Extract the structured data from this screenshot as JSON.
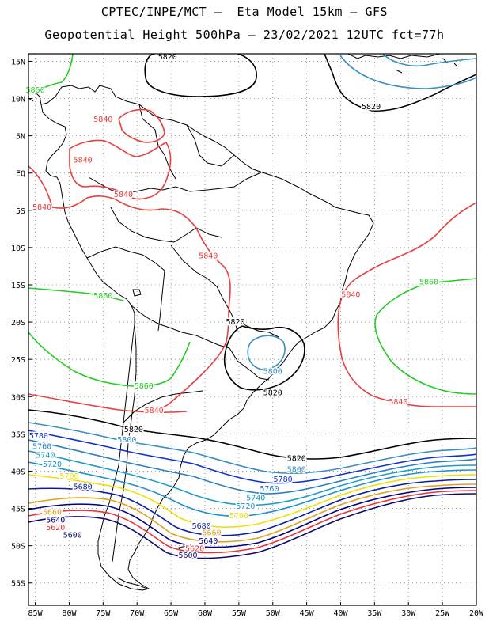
{
  "title_line1": "CPTEC/INPE/MCT –  Eta Model 15km – GFS",
  "title_line2": "Geopotential Height 500hPa – 23/02/2021 12UTC fct=77h",
  "map": {
    "lon_range": [
      -86,
      -20
    ],
    "lat_range": [
      -58,
      16
    ],
    "lon_ticks": [
      "85W",
      "80W",
      "75W",
      "70W",
      "65W",
      "60W",
      "55W",
      "50W",
      "45W",
      "40W",
      "35W",
      "30W",
      "25W",
      "20W"
    ],
    "lon_tick_values": [
      -85,
      -80,
      -75,
      -70,
      -65,
      -60,
      -55,
      -50,
      -45,
      -40,
      -35,
      -30,
      -25,
      -20
    ],
    "lat_ticks": [
      "15N",
      "10N",
      "5N",
      "EQ",
      "5S",
      "10S",
      "15S",
      "20S",
      "25S",
      "30S",
      "35S",
      "40S",
      "45S",
      "50S",
      "55S"
    ],
    "lat_tick_values": [
      15,
      10,
      5,
      0,
      -5,
      -10,
      -15,
      -20,
      -25,
      -30,
      -35,
      -40,
      -45,
      -50,
      -55
    ],
    "grid": true,
    "level_colors": {
      "5600": "#0b0b6e",
      "5620": "#e8343a",
      "5640": "#000080",
      "5660": "#e0a020",
      "5680": "#0a1fa0",
      "5700": "#f0e000",
      "5720": "#1f8fd0",
      "5740": "#1c9cc8",
      "5760": "#2a7fc0",
      "5780": "#1030d0",
      "5800": "#3a8fc0",
      "5820": "#000000",
      "5840": "#e84040",
      "5860": "#22cc22"
    },
    "contour_labels": [
      {
        "text": "5820",
        "level": "5820",
        "lon": -65.5,
        "lat": 15.7
      },
      {
        "text": "5820",
        "level": "5820",
        "lon": -35.5,
        "lat": 9.0
      },
      {
        "text": "5840",
        "level": "5840",
        "lon": -75.0,
        "lat": 7.3
      },
      {
        "text": "5840",
        "level": "5840",
        "lon": -78.0,
        "lat": 1.8
      },
      {
        "text": "5840",
        "level": "5840",
        "lon": -72.0,
        "lat": -2.8
      },
      {
        "text": "5840",
        "level": "5840",
        "lon": -84.0,
        "lat": -4.5
      },
      {
        "text": "5840",
        "level": "5840",
        "lon": -59.5,
        "lat": -11.0
      },
      {
        "text": "5840",
        "level": "5840",
        "lon": -38.5,
        "lat": -16.2
      },
      {
        "text": "5840",
        "level": "5840",
        "lon": -67.5,
        "lat": -31.8
      },
      {
        "text": "5840",
        "level": "5840",
        "lon": -31.5,
        "lat": -30.6
      },
      {
        "text": "5860",
        "level": "5860",
        "lon": -85.0,
        "lat": 11.2
      },
      {
        "text": "5860",
        "level": "5860",
        "lon": -75.0,
        "lat": -16.4
      },
      {
        "text": "5860",
        "level": "5860",
        "lon": -69.0,
        "lat": -28.5
      },
      {
        "text": "5860",
        "level": "5860",
        "lon": -27.0,
        "lat": -14.5
      },
      {
        "text": "5820",
        "level": "5820",
        "lon": -55.5,
        "lat": -19.9
      },
      {
        "text": "5800",
        "level": "5800",
        "lon": -50.0,
        "lat": -26.5
      },
      {
        "text": "5820",
        "level": "5820",
        "lon": -50.0,
        "lat": -29.4
      },
      {
        "text": "5820",
        "level": "5820",
        "lon": -70.5,
        "lat": -34.3
      },
      {
        "text": "5800",
        "level": "5800",
        "lon": -71.5,
        "lat": -35.7
      },
      {
        "text": "5820",
        "level": "5820",
        "lon": -46.5,
        "lat": -38.2
      },
      {
        "text": "5800",
        "level": "5800",
        "lon": -46.5,
        "lat": -39.7
      },
      {
        "text": "5780",
        "level": "5780",
        "lon": -48.5,
        "lat": -41.0
      },
      {
        "text": "5760",
        "level": "5760",
        "lon": -50.5,
        "lat": -42.3
      },
      {
        "text": "5740",
        "level": "5740",
        "lon": -52.5,
        "lat": -43.5
      },
      {
        "text": "5720",
        "level": "5720",
        "lon": -54.0,
        "lat": -44.6
      },
      {
        "text": "5700",
        "level": "5700",
        "lon": -55.0,
        "lat": -45.9
      },
      {
        "text": "5680",
        "level": "5680",
        "lon": -60.5,
        "lat": -47.3
      },
      {
        "text": "5660",
        "level": "5660",
        "lon": -59.0,
        "lat": -48.2
      },
      {
        "text": "5640",
        "level": "5640",
        "lon": -59.5,
        "lat": -49.3
      },
      {
        "text": "5620",
        "level": "5620",
        "lon": -61.5,
        "lat": -50.3
      },
      {
        "text": "5600",
        "level": "5600",
        "lon": -62.5,
        "lat": -51.2
      },
      {
        "text": "5780",
        "level": "5780",
        "lon": -84.5,
        "lat": -35.2
      },
      {
        "text": "5760",
        "level": "5760",
        "lon": -84.0,
        "lat": -36.6
      },
      {
        "text": "5740",
        "level": "5740",
        "lon": -83.5,
        "lat": -37.8
      },
      {
        "text": "5720",
        "level": "5720",
        "lon": -82.5,
        "lat": -39.0
      },
      {
        "text": "5700",
        "level": "5700",
        "lon": -80.0,
        "lat": -40.6
      },
      {
        "text": "5680",
        "level": "5680",
        "lon": -78.0,
        "lat": -42.0
      },
      {
        "text": "5660",
        "level": "5660",
        "lon": -82.5,
        "lat": -45.4
      },
      {
        "text": "5640",
        "level": "5640",
        "lon": -82.0,
        "lat": -46.5
      },
      {
        "text": "5620",
        "level": "5620",
        "lon": -82.0,
        "lat": -47.5
      },
      {
        "text": "5600",
        "level": "5600",
        "lon": -79.5,
        "lat": -48.5
      }
    ]
  }
}
